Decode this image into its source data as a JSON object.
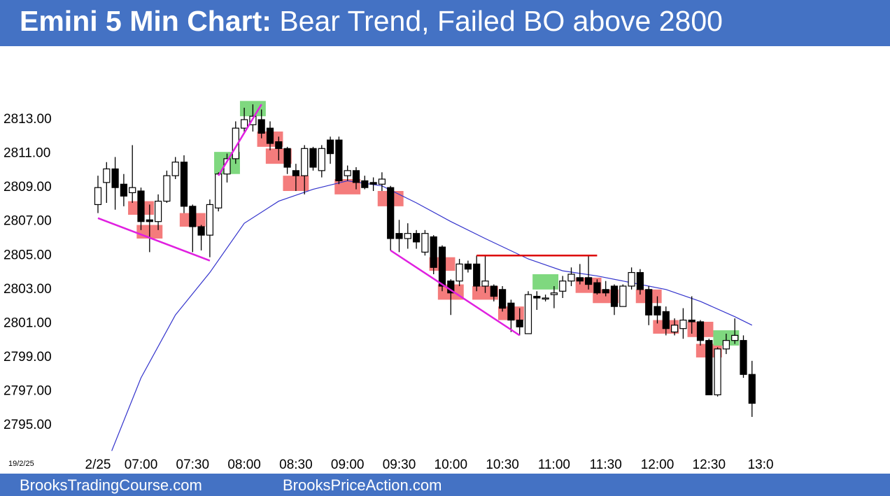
{
  "chart_data": {
    "type": "candlestick",
    "title_lead": "Emini 5 Min Chart:",
    "title": "Bear Trend, Failed BO above 2800",
    "date_label": "19/2/25",
    "open": [
      2808.0,
      2809.3,
      2810.1,
      2809.2,
      2808.7,
      2808.8,
      2807.1,
      2807.0,
      2808.2,
      2809.7,
      2810.5,
      2807.9,
      2806.7,
      2806.2,
      2807.8,
      2809.8,
      2810.7,
      2812.5,
      2812.7,
      2813.0,
      2812.5,
      2811.7,
      2811.3,
      2810.0,
      2809.7,
      2811.3,
      2810.0,
      2811.8,
      2811.8,
      2809.7,
      2810.0,
      2809.4,
      2809.3,
      2809.2,
      2809.0,
      2806.3,
      2806.0,
      2806.3,
      2805.2,
      2806.1,
      2805.5,
      2803.5,
      2803.5,
      2804.5,
      2804.5,
      2803.2,
      2803.2,
      2803.0,
      2802.2,
      2801.2,
      2800.4,
      2802.6,
      2802.5,
      2802.7,
      2802.9,
      2803.5,
      2803.7,
      2803.7,
      2803.4,
      2803.0,
      2803.2,
      2802.0,
      2803.2,
      2804.0,
      2803.0,
      2802.0,
      2801.7,
      2800.5,
      2800.7,
      2801.2,
      2801.1,
      2800.0,
      2796.8,
      2799.5,
      2800.0,
      2800.0,
      2798.0
    ],
    "high": [
      2809.7,
      2810.5,
      2810.8,
      2809.8,
      2811.5,
      2809.0,
      2808.0,
      2808.6,
      2810.0,
      2810.8,
      2810.9,
      2808.0,
      2806.8,
      2808.3,
      2809.9,
      2811.0,
      2812.9,
      2813.7,
      2813.9,
      2813.6,
      2812.9,
      2812.0,
      2811.4,
      2810.4,
      2811.5,
      2811.4,
      2811.5,
      2812.0,
      2812.0,
      2810.3,
      2810.2,
      2809.7,
      2809.6,
      2809.9,
      2809.1,
      2807.1,
      2806.9,
      2806.5,
      2806.5,
      2806.2,
      2805.6,
      2803.6,
      2804.8,
      2804.7,
      2805.0,
      2805.0,
      2803.3,
      2803.2,
      2802.4,
      2801.9,
      2802.9,
      2802.9,
      2802.7,
      2803.2,
      2803.8,
      2804.3,
      2804.5,
      2805.0,
      2803.6,
      2803.5,
      2803.3,
      2803.3,
      2804.3,
      2804.2,
      2803.2,
      2802.6,
      2802.0,
      2801.3,
      2801.9,
      2802.6,
      2801.2,
      2800.1,
      2799.6,
      2800.4,
      2801.3,
      2800.3,
      2798.8
    ],
    "low": [
      2807.5,
      2808.1,
      2807.7,
      2807.9,
      2808.1,
      2806.5,
      2805.2,
      2806.5,
      2808.1,
      2809.5,
      2807.5,
      2805.2,
      2805.3,
      2804.9,
      2807.6,
      2809.3,
      2810.4,
      2812.2,
      2812.3,
      2811.9,
      2811.2,
      2810.6,
      2809.8,
      2808.8,
      2808.6,
      2810.0,
      2809.6,
      2810.4,
      2809.2,
      2809.4,
      2808.9,
      2808.9,
      2808.8,
      2808.8,
      2805.3,
      2805.2,
      2805.4,
      2805.4,
      2805.0,
      2803.9,
      2802.9,
      2801.5,
      2803.2,
      2804.0,
      2802.9,
      2802.8,
      2802.3,
      2801.7,
      2800.5,
      2800.3,
      2800.4,
      2801.8,
      2802.3,
      2801.9,
      2802.5,
      2803.2,
      2803.3,
      2803.0,
      2802.7,
      2802.6,
      2801.5,
      2802.0,
      2803.0,
      2802.7,
      2800.9,
      2801.0,
      2800.3,
      2800.3,
      2800.1,
      2800.4,
      2799.7,
      2796.8,
      2796.7,
      2799.2,
      2799.8,
      2797.8,
      2795.5
    ],
    "close": [
      2809.0,
      2810.1,
      2809.0,
      2808.5,
      2809.0,
      2807.0,
      2807.0,
      2808.2,
      2809.7,
      2810.5,
      2807.9,
      2806.7,
      2806.2,
      2808.0,
      2809.8,
      2810.7,
      2812.5,
      2813.0,
      2813.2,
      2812.2,
      2811.6,
      2811.3,
      2810.2,
      2809.7,
      2811.3,
      2810.2,
      2811.3,
      2811.0,
      2809.4,
      2810.0,
      2809.3,
      2809.0,
      2809.2,
      2809.5,
      2806.0,
      2806.0,
      2806.3,
      2805.8,
      2806.3,
      2804.3,
      2803.2,
      2802.8,
      2804.5,
      2804.2,
      2803.2,
      2803.5,
      2802.6,
      2801.9,
      2801.2,
      2800.8,
      2802.7,
      2802.5,
      2802.5,
      2802.8,
      2803.5,
      2803.9,
      2803.5,
      2803.3,
      2802.8,
      2802.8,
      2802.0,
      2803.2,
      2804.0,
      2803.0,
      2801.5,
      2801.5,
      2800.7,
      2800.9,
      2801.2,
      2801.1,
      2800.0,
      2796.8,
      2799.5,
      2800.0,
      2800.3,
      2798.0,
      2796.3
    ],
    "up_color": "#ffffff",
    "down_color": "#000000",
    "ema": {
      "color": "#3333cc",
      "x": [
        1.6,
        5,
        9,
        13,
        17,
        21,
        25,
        29,
        33,
        37,
        41,
        45,
        50,
        54,
        58,
        62,
        66,
        70,
        74,
        76
      ],
      "values": [
        2793.5,
        2797.8,
        2801.5,
        2804.0,
        2806.9,
        2808.2,
        2808.9,
        2809.4,
        2809.1,
        2808.1,
        2807.0,
        2806.0,
        2804.8,
        2804.1,
        2803.8,
        2803.4,
        2803.0,
        2802.3,
        2801.4,
        2800.9
      ]
    },
    "lines": [
      {
        "color": "#e020e0",
        "x": [
          0,
          13
        ],
        "values": [
          2807.2,
          2804.7
        ]
      },
      {
        "color": "#e020e0",
        "x": [
          14,
          19
        ],
        "values": [
          2809.7,
          2813.9
        ]
      },
      {
        "color": "#e020e0",
        "x": [
          34,
          49
        ],
        "values": [
          2805.3,
          2800.3
        ]
      },
      {
        "color": "#dd0000",
        "x": [
          44,
          58
        ],
        "values": [
          2805.0,
          2805.0
        ]
      }
    ],
    "boxes": [
      {
        "color": "#f47c7c",
        "x": 5,
        "values": [
          2807.4,
          2808.2
        ]
      },
      {
        "color": "#f47c7c",
        "x": 6,
        "values": [
          2806.0,
          2806.8
        ]
      },
      {
        "color": "#f47c7c",
        "x": 11,
        "values": [
          2806.7,
          2807.5
        ]
      },
      {
        "color": "#f47c7c",
        "x": 20,
        "values": [
          2811.4,
          2812.3
        ]
      },
      {
        "color": "#f47c7c",
        "x": 21,
        "values": [
          2810.4,
          2811.3
        ]
      },
      {
        "color": "#f47c7c",
        "x": 23,
        "values": [
          2808.8,
          2809.7
        ]
      },
      {
        "color": "#f47c7c",
        "x": 29,
        "values": [
          2808.6,
          2809.5
        ]
      },
      {
        "color": "#f47c7c",
        "x": 34,
        "values": [
          2807.9,
          2808.8
        ]
      },
      {
        "color": "#f47c7c",
        "x": 40,
        "values": [
          2804.1,
          2804.9
        ]
      },
      {
        "color": "#f47c7c",
        "x": 41,
        "values": [
          2802.4,
          2803.3
        ]
      },
      {
        "color": "#f47c7c",
        "x": 45,
        "values": [
          2802.4,
          2803.2
        ]
      },
      {
        "color": "#f47c7c",
        "x": 48,
        "values": [
          2801.2,
          2802.0
        ]
      },
      {
        "color": "#f47c7c",
        "x": 57,
        "values": [
          2802.8,
          2803.7
        ]
      },
      {
        "color": "#f47c7c",
        "x": 59,
        "values": [
          2802.2,
          2803.0
        ]
      },
      {
        "color": "#f47c7c",
        "x": 64,
        "values": [
          2802.2,
          2803.0
        ]
      },
      {
        "color": "#f47c7c",
        "x": 66,
        "values": [
          2800.4,
          2801.2
        ]
      },
      {
        "color": "#f47c7c",
        "x": 70,
        "values": [
          2800.2,
          2801.1
        ]
      },
      {
        "color": "#f47c7c",
        "x": 71,
        "values": [
          2799.0,
          2799.8
        ]
      },
      {
        "color": "#7fd87f",
        "x": 15,
        "values": [
          2809.8,
          2811.1
        ]
      },
      {
        "color": "#7fd87f",
        "x": 18,
        "values": [
          2813.2,
          2814.1
        ]
      },
      {
        "color": "#7fd87f",
        "x": 52,
        "values": [
          2803.0,
          2803.9
        ]
      },
      {
        "color": "#7fd87f",
        "x": 73,
        "values": [
          2799.7,
          2800.6
        ]
      }
    ],
    "xlim": [
      0,
      77
    ],
    "xticks": [
      {
        "value": 0,
        "label": "2/25"
      },
      {
        "value": 5,
        "label": "07:00"
      },
      {
        "value": 11,
        "label": "07:30"
      },
      {
        "value": 17,
        "label": "08:00"
      },
      {
        "value": 23,
        "label": "08:30"
      },
      {
        "value": 29,
        "label": "09:00"
      },
      {
        "value": 35,
        "label": "09:30"
      },
      {
        "value": 41,
        "label": "10:00"
      },
      {
        "value": 47,
        "label": "10:30"
      },
      {
        "value": 53,
        "label": "11:00"
      },
      {
        "value": 59,
        "label": "11:30"
      },
      {
        "value": 65,
        "label": "12:00"
      },
      {
        "value": 71,
        "label": "12:30"
      },
      {
        "value": 77,
        "label": "13:0"
      }
    ],
    "ylim": [
      2793.5,
      2817
    ],
    "yticks": [
      {
        "value": 2795,
        "label": "2795.00"
      },
      {
        "value": 2797,
        "label": "2797.00"
      },
      {
        "value": 2799,
        "label": "2799.00"
      },
      {
        "value": 2801,
        "label": "2801.00"
      },
      {
        "value": 2803,
        "label": "2803.00"
      },
      {
        "value": 2805,
        "label": "2805.00"
      },
      {
        "value": 2807,
        "label": "2807.00"
      },
      {
        "value": 2809,
        "label": "2809.00"
      },
      {
        "value": 2811,
        "label": "2811.00"
      },
      {
        "value": 2813,
        "label": "2813.00"
      }
    ]
  },
  "footer": {
    "left": "BrooksTradingCourse.com",
    "right": "BrooksPriceAction.com"
  }
}
